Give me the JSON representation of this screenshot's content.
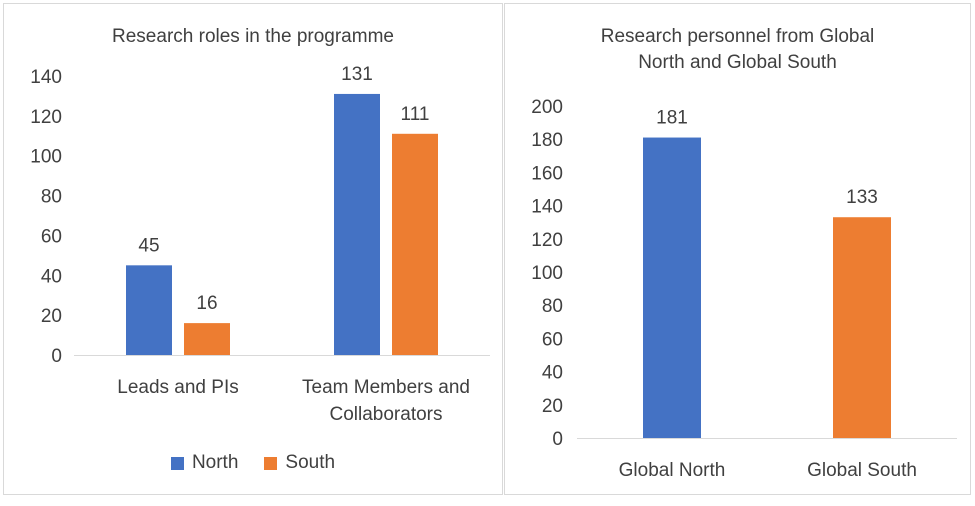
{
  "chart_data": [
    {
      "type": "bar",
      "title": "Research roles in the programme",
      "categories": [
        "Leads and PIs",
        "Team Members and Collaborators"
      ],
      "category_label_lines": [
        [
          "Leads and PIs"
        ],
        [
          "Team Members and",
          "Collaborators"
        ]
      ],
      "series": [
        {
          "name": "North",
          "values": [
            45,
            131
          ],
          "color": "#4472C4"
        },
        {
          "name": "South",
          "values": [
            16,
            111
          ],
          "color": "#ED7D31"
        }
      ],
      "ylim": [
        0,
        140
      ],
      "yticks": [
        0,
        20,
        40,
        60,
        80,
        100,
        120,
        140
      ],
      "data_labels": true,
      "grid": false,
      "legend": "bottom"
    },
    {
      "type": "bar",
      "title": "Research personnel from Global North and Global South",
      "title_lines": [
        "Research personnel from Global",
        "North and Global South"
      ],
      "categories": [
        "Global North",
        "Global South"
      ],
      "values": [
        181,
        133
      ],
      "colors": [
        "#4472C4",
        "#ED7D31"
      ],
      "ylim": [
        0,
        200
      ],
      "yticks": [
        0,
        20,
        40,
        60,
        80,
        100,
        120,
        140,
        160,
        180,
        200
      ],
      "data_labels": true,
      "grid": false,
      "legend": "none"
    }
  ]
}
